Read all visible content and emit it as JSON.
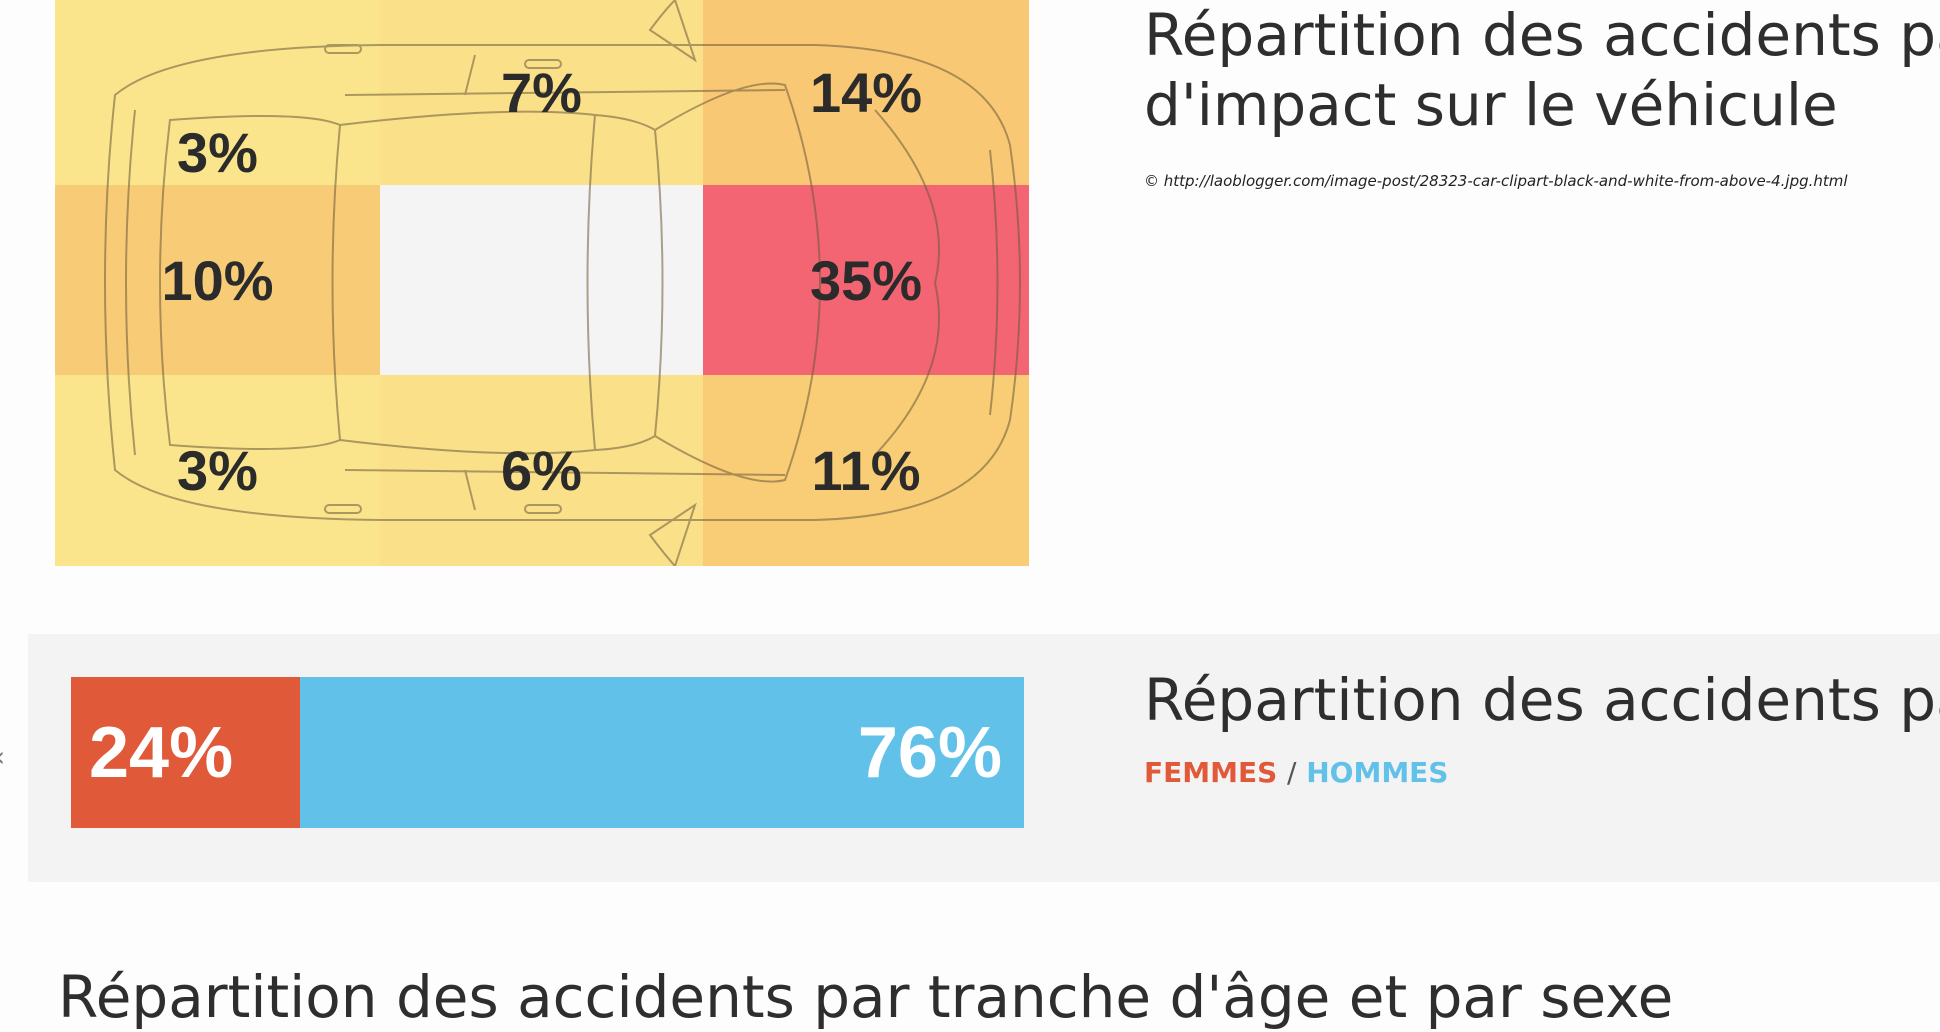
{
  "impact": {
    "title_line1": "Répartition des accidents par",
    "title_line2": "d'impact sur le véhicule",
    "credit": "© http://laoblogger.com/image-post/28323-car-clipart-black-and-white-from-above-4.jpg.html",
    "cells": [
      {
        "label": "3%",
        "color": "#fbe58c"
      },
      {
        "label": "7%",
        "color": "#fbe08a"
      },
      {
        "label": "14%",
        "color": "#f9c874"
      },
      {
        "label": "10%",
        "color": "#f8cc77"
      },
      {
        "label": "",
        "color": "#f4f4f4"
      },
      {
        "label": "35%",
        "color": "#f36573"
      },
      {
        "label": "3%",
        "color": "#fbe58c"
      },
      {
        "label": "6%",
        "color": "#fbe08a"
      },
      {
        "label": "11%",
        "color": "#f9cd76"
      }
    ]
  },
  "gender": {
    "title": "Répartition des accidents par",
    "femmes_label": "FEMMES",
    "separator": "/",
    "hommes_label": "HOMMES",
    "femmes_value": "24%",
    "hommes_value": "76%",
    "femmes_share": 0.24,
    "hommes_share": 0.76,
    "femmes_color": "#e05a3a",
    "hommes_color": "#62c1e9"
  },
  "age": {
    "title": "Répartition des accidents par tranche d'âge et par sexe"
  },
  "nav": {
    "arrow": "‹"
  }
}
